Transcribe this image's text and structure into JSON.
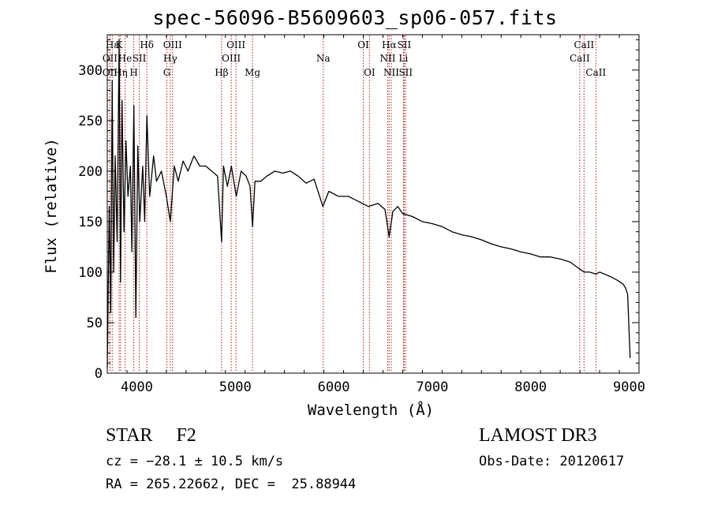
{
  "chart_data": {
    "type": "line",
    "title": "spec-56096-B5609603_sp06-057.fits",
    "xlabel": "Wavelength (Å)",
    "ylabel": "Flux (relative)",
    "xlim": [
      3700,
      9100
    ],
    "ylim": [
      0,
      335
    ],
    "xticks": [
      4000,
      5000,
      6000,
      7000,
      8000,
      9000
    ],
    "yticks": [
      0,
      50,
      100,
      150,
      200,
      250,
      300
    ],
    "grid": false,
    "series": [
      {
        "name": "spectrum",
        "x": [
          3700,
          3720,
          3735,
          3750,
          3765,
          3780,
          3800,
          3820,
          3835,
          3850,
          3870,
          3890,
          3910,
          3935,
          3950,
          3970,
          3990,
          4010,
          4030,
          4060,
          4080,
          4102,
          4130,
          4170,
          4200,
          4250,
          4300,
          4340,
          4380,
          4420,
          4470,
          4520,
          4580,
          4640,
          4700,
          4760,
          4820,
          4861,
          4880,
          4920,
          4960,
          5010,
          5060,
          5110,
          5150,
          5175,
          5200,
          5260,
          5320,
          5400,
          5480,
          5560,
          5640,
          5720,
          5800,
          5890,
          5950,
          6050,
          6150,
          6250,
          6350,
          6450,
          6520,
          6563,
          6600,
          6650,
          6700,
          6800,
          6900,
          7000,
          7100,
          7200,
          7300,
          7400,
          7500,
          7600,
          7700,
          7800,
          7900,
          8000,
          8100,
          8200,
          8300,
          8400,
          8498,
          8542,
          8600,
          8662,
          8700,
          8800,
          8880,
          8940,
          8965,
          8985,
          9000,
          9010
        ],
        "values": [
          5,
          165,
          60,
          290,
          100,
          215,
          130,
          330,
          90,
          270,
          140,
          230,
          175,
          205,
          120,
          265,
          55,
          225,
          150,
          205,
          150,
          255,
          175,
          215,
          190,
          200,
          175,
          150,
          205,
          190,
          210,
          200,
          215,
          205,
          205,
          200,
          195,
          130,
          205,
          185,
          205,
          175,
          200,
          195,
          185,
          145,
          190,
          190,
          195,
          200,
          198,
          200,
          195,
          188,
          192,
          165,
          180,
          175,
          175,
          170,
          165,
          168,
          162,
          135,
          160,
          165,
          158,
          155,
          150,
          148,
          145,
          140,
          137,
          135,
          132,
          128,
          125,
          123,
          120,
          118,
          115,
          115,
          113,
          110,
          103,
          100,
          100,
          98,
          100,
          96,
          92,
          88,
          84,
          78,
          40,
          15
        ]
      }
    ],
    "lines": [
      {
        "label": "Hε",
        "x": 3750,
        "row": 0
      },
      {
        "label": "K",
        "x": 3820,
        "row": 0
      },
      {
        "label": "Hδ",
        "x": 4102,
        "row": 0
      },
      {
        "label": "OIII",
        "x": 4363,
        "row": 0
      },
      {
        "label": "OIII",
        "x": 5007,
        "row": 0
      },
      {
        "label": "OI",
        "x": 6300,
        "row": 0
      },
      {
        "label": "Hα",
        "x": 6563,
        "row": 0
      },
      {
        "label": "SII",
        "x": 6716,
        "row": 0
      },
      {
        "label": "CaII",
        "x": 8542,
        "row": 0
      },
      {
        "label": "OII",
        "x": 3727,
        "row": 1
      },
      {
        "label": "He",
        "x": 3880,
        "row": 1
      },
      {
        "label": "SII",
        "x": 4025,
        "row": 1
      },
      {
        "label": "Hγ",
        "x": 4340,
        "row": 1
      },
      {
        "label": "OIII",
        "x": 4959,
        "row": 1
      },
      {
        "label": "Na",
        "x": 5893,
        "row": 1
      },
      {
        "label": "NII",
        "x": 6548,
        "row": 1
      },
      {
        "label": "Li",
        "x": 6708,
        "row": 1
      },
      {
        "label": "CaII",
        "x": 8498,
        "row": 1
      },
      {
        "label": "OII",
        "x": 3727,
        "row": 2
      },
      {
        "label": "Hη",
        "x": 3835,
        "row": 2
      },
      {
        "label": "H",
        "x": 3969,
        "row": 2
      },
      {
        "label": "G",
        "x": 4305,
        "row": 2
      },
      {
        "label": "Hβ",
        "x": 4861,
        "row": 2
      },
      {
        "label": "Mg",
        "x": 5175,
        "row": 2
      },
      {
        "label": "OI",
        "x": 6363,
        "row": 2
      },
      {
        "label": "NII",
        "x": 6584,
        "row": 2
      },
      {
        "label": "SII",
        "x": 6731,
        "row": 2
      },
      {
        "label": "CaII",
        "x": 8662,
        "row": 2
      }
    ]
  },
  "info": {
    "object_class": "STAR",
    "subclass": "F2",
    "survey": "LAMOST DR3",
    "cz": "cz = −28.1 ± 10.5 km/s",
    "obs_date": "Obs-Date: 20120617",
    "radec": "RA = 265.22662, DEC =  25.88944"
  },
  "colors": {
    "spectrum": "#000000",
    "marker": "#aa2222",
    "axis": "#000000",
    "background": "#ffffff"
  }
}
